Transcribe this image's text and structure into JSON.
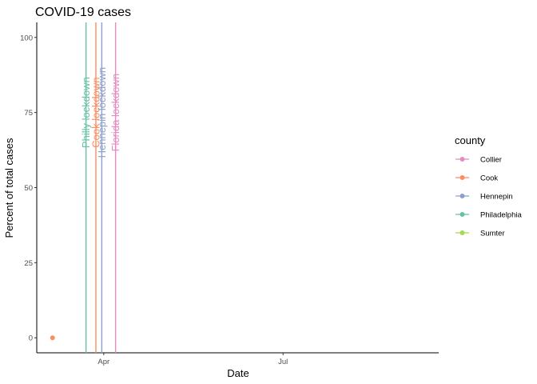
{
  "chart_data": {
    "type": "line",
    "title": "COVID-19 cases",
    "xlabel": "Date",
    "ylabel": "Percent of total cases",
    "x_ticks": [
      {
        "date": "2020-04-01",
        "label": "Apr"
      },
      {
        "date": "2020-07-01",
        "label": "Jul"
      }
    ],
    "xlim": [
      "2020-02-27",
      "2020-09-18"
    ],
    "y_ticks": [
      0,
      25,
      50,
      75,
      100
    ],
    "ylim": [
      -5,
      105
    ],
    "grid": false,
    "legend": {
      "title": "county",
      "placement": "right",
      "entries": [
        {
          "name": "Collier",
          "color": "#E78AC3"
        },
        {
          "name": "Cook",
          "color": "#FC8D62"
        },
        {
          "name": "Hennepin",
          "color": "#8DA0CB"
        },
        {
          "name": "Philadelphia",
          "color": "#66C2A5"
        },
        {
          "name": "Sumter",
          "color": "#A6D854"
        }
      ]
    },
    "series": [
      {
        "name": "Cook",
        "color": "#FC8D62",
        "points": [
          {
            "x": "2020-03-06",
            "y": 0
          }
        ]
      }
    ],
    "vlines": [
      {
        "label": "Philly lockdown",
        "date": "2020-03-23",
        "color": "#66C2A5"
      },
      {
        "label": "Cook lockdown",
        "date": "2020-03-28",
        "color": "#FC8D62"
      },
      {
        "label": "Hennepin lockdown",
        "date": "2020-03-31",
        "color": "#8DA0CB"
      },
      {
        "label": "Florida lockdown",
        "date": "2020-04-07",
        "color": "#E78AC3"
      }
    ]
  }
}
